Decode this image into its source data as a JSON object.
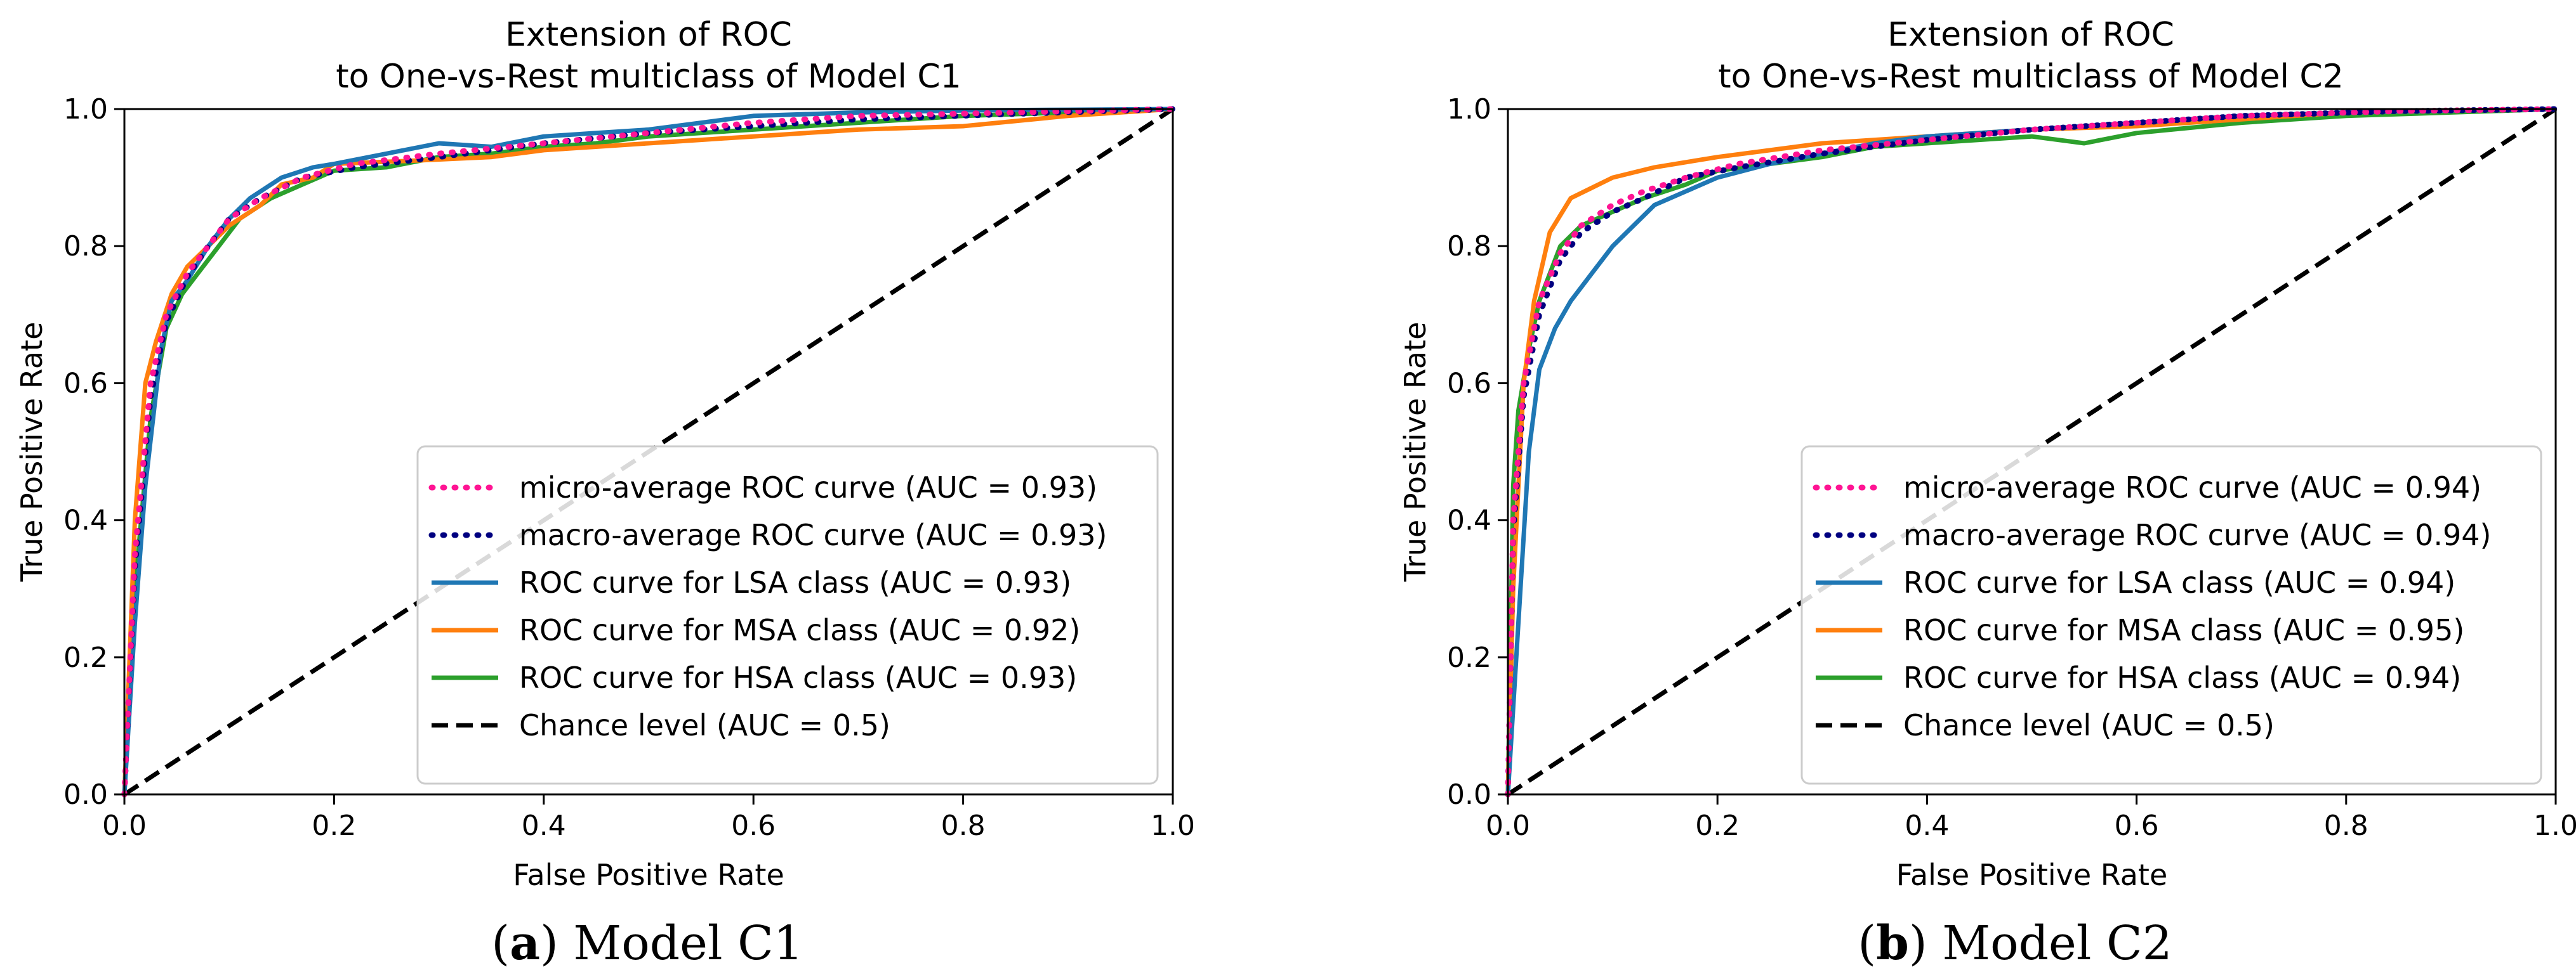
{
  "colors": {
    "micro": "#ff1493",
    "macro": "#000080",
    "lsa": "#1f77b4",
    "msa": "#ff7f0e",
    "hsa": "#2ca02c",
    "chance": "#000000"
  },
  "chart_data": [
    {
      "type": "line",
      "caption_label": "a",
      "caption_text": "Model C1",
      "title": "Extension of ROC\nto One-vs-Rest multiclass of Model C1",
      "xlabel": "False Positive Rate",
      "ylabel": "True Positive Rate",
      "xlim": [
        0.0,
        1.0
      ],
      "ylim": [
        0.0,
        1.0
      ],
      "x_ticks": [
        0.0,
        0.2,
        0.4,
        0.6,
        0.8,
        1.0
      ],
      "y_ticks": [
        0.0,
        0.2,
        0.4,
        0.6,
        0.8,
        1.0
      ],
      "tick_labels": [
        "0.0",
        "0.2",
        "0.4",
        "0.6",
        "0.8",
        "1.0"
      ],
      "grid": false,
      "legend_position": "lower-right",
      "series": [
        {
          "key": "micro",
          "name": "micro-average ROC curve (AUC = 0.93)",
          "style": "dotted",
          "points": [
            [
              0,
              0
            ],
            [
              0.01,
              0.35
            ],
            [
              0.025,
              0.6
            ],
            [
              0.04,
              0.7
            ],
            [
              0.06,
              0.76
            ],
            [
              0.08,
              0.8
            ],
            [
              0.1,
              0.84
            ],
            [
              0.13,
              0.87
            ],
            [
              0.17,
              0.9
            ],
            [
              0.22,
              0.92
            ],
            [
              0.3,
              0.935
            ],
            [
              0.4,
              0.95
            ],
            [
              0.5,
              0.965
            ],
            [
              0.6,
              0.98
            ],
            [
              0.7,
              0.99
            ],
            [
              0.85,
              0.995
            ],
            [
              1,
              1
            ]
          ]
        },
        {
          "key": "macro",
          "name": "macro-average ROC curve (AUC = 0.93)",
          "style": "dotted",
          "points": [
            [
              0,
              0
            ],
            [
              0.01,
              0.33
            ],
            [
              0.025,
              0.58
            ],
            [
              0.04,
              0.69
            ],
            [
              0.06,
              0.755
            ],
            [
              0.08,
              0.8
            ],
            [
              0.1,
              0.84
            ],
            [
              0.13,
              0.87
            ],
            [
              0.17,
              0.9
            ],
            [
              0.22,
              0.915
            ],
            [
              0.3,
              0.93
            ],
            [
              0.4,
              0.95
            ],
            [
              0.5,
              0.965
            ],
            [
              0.6,
              0.975
            ],
            [
              0.7,
              0.985
            ],
            [
              0.85,
              0.993
            ],
            [
              1,
              1
            ]
          ]
        },
        {
          "key": "lsa",
          "name": "ROC curve for LSA class (AUC = 0.93)",
          "style": "solid",
          "points": [
            [
              0,
              0
            ],
            [
              0.01,
              0.25
            ],
            [
              0.02,
              0.45
            ],
            [
              0.035,
              0.65
            ],
            [
              0.045,
              0.72
            ],
            [
              0.06,
              0.75
            ],
            [
              0.08,
              0.8
            ],
            [
              0.1,
              0.84
            ],
            [
              0.12,
              0.87
            ],
            [
              0.15,
              0.9
            ],
            [
              0.18,
              0.915
            ],
            [
              0.2,
              0.92
            ],
            [
              0.25,
              0.935
            ],
            [
              0.3,
              0.95
            ],
            [
              0.35,
              0.945
            ],
            [
              0.4,
              0.96
            ],
            [
              0.45,
              0.965
            ],
            [
              0.5,
              0.97
            ],
            [
              0.55,
              0.98
            ],
            [
              0.6,
              0.99
            ],
            [
              0.7,
              0.995
            ],
            [
              0.8,
              0.998
            ],
            [
              0.9,
              0.999
            ],
            [
              1,
              1
            ]
          ]
        },
        {
          "key": "msa",
          "name": "ROC curve for MSA class (AUC = 0.92)",
          "style": "solid",
          "points": [
            [
              0,
              0
            ],
            [
              0.01,
              0.4
            ],
            [
              0.02,
              0.6
            ],
            [
              0.03,
              0.66
            ],
            [
              0.045,
              0.73
            ],
            [
              0.06,
              0.77
            ],
            [
              0.08,
              0.8
            ],
            [
              0.1,
              0.83
            ],
            [
              0.13,
              0.86
            ],
            [
              0.15,
              0.89
            ],
            [
              0.18,
              0.9
            ],
            [
              0.2,
              0.92
            ],
            [
              0.28,
              0.925
            ],
            [
              0.35,
              0.93
            ],
            [
              0.4,
              0.94
            ],
            [
              0.45,
              0.945
            ],
            [
              0.5,
              0.95
            ],
            [
              0.55,
              0.955
            ],
            [
              0.6,
              0.96
            ],
            [
              0.7,
              0.97
            ],
            [
              0.8,
              0.975
            ],
            [
              0.9,
              0.99
            ],
            [
              1,
              1
            ]
          ]
        },
        {
          "key": "hsa",
          "name": "ROC curve for HSA class (AUC = 0.93)",
          "style": "solid",
          "points": [
            [
              0,
              0
            ],
            [
              0.01,
              0.3
            ],
            [
              0.025,
              0.55
            ],
            [
              0.04,
              0.68
            ],
            [
              0.055,
              0.73
            ],
            [
              0.07,
              0.76
            ],
            [
              0.09,
              0.8
            ],
            [
              0.11,
              0.84
            ],
            [
              0.14,
              0.87
            ],
            [
              0.17,
              0.89
            ],
            [
              0.2,
              0.91
            ],
            [
              0.25,
              0.915
            ],
            [
              0.3,
              0.93
            ],
            [
              0.35,
              0.935
            ],
            [
              0.4,
              0.945
            ],
            [
              0.45,
              0.95
            ],
            [
              0.5,
              0.96
            ],
            [
              0.55,
              0.965
            ],
            [
              0.6,
              0.97
            ],
            [
              0.65,
              0.975
            ],
            [
              0.7,
              0.98
            ],
            [
              0.8,
              0.99
            ],
            [
              0.9,
              0.995
            ],
            [
              1,
              1
            ]
          ]
        },
        {
          "key": "chance",
          "name": "Chance level (AUC = 0.5)",
          "style": "dashed",
          "points": [
            [
              0,
              0
            ],
            [
              1,
              1
            ]
          ]
        }
      ]
    },
    {
      "type": "line",
      "caption_label": "b",
      "caption_text": "Model C2",
      "title": "Extension of ROC\nto One-vs-Rest multiclass of Model C2",
      "xlabel": "False Positive Rate",
      "ylabel": "True Positive Rate",
      "xlim": [
        0.0,
        1.0
      ],
      "ylim": [
        0.0,
        1.0
      ],
      "x_ticks": [
        0.0,
        0.2,
        0.4,
        0.6,
        0.8,
        1.0
      ],
      "y_ticks": [
        0.0,
        0.2,
        0.4,
        0.6,
        0.8,
        1.0
      ],
      "tick_labels": [
        "0.0",
        "0.2",
        "0.4",
        "0.6",
        "0.8",
        "1.0"
      ],
      "grid": false,
      "legend_position": "lower-right",
      "series": [
        {
          "key": "micro",
          "name": "micro-average ROC curve (AUC = 0.94)",
          "style": "dotted",
          "points": [
            [
              0,
              0
            ],
            [
              0.005,
              0.4
            ],
            [
              0.015,
              0.6
            ],
            [
              0.03,
              0.72
            ],
            [
              0.05,
              0.79
            ],
            [
              0.07,
              0.83
            ],
            [
              0.1,
              0.86
            ],
            [
              0.13,
              0.88
            ],
            [
              0.17,
              0.9
            ],
            [
              0.22,
              0.92
            ],
            [
              0.3,
              0.94
            ],
            [
              0.4,
              0.955
            ],
            [
              0.5,
              0.97
            ],
            [
              0.6,
              0.98
            ],
            [
              0.7,
              0.99
            ],
            [
              0.85,
              0.997
            ],
            [
              1,
              1
            ]
          ]
        },
        {
          "key": "macro",
          "name": "macro-average ROC curve (AUC = 0.94)",
          "style": "dotted",
          "points": [
            [
              0,
              0
            ],
            [
              0.005,
              0.38
            ],
            [
              0.015,
              0.58
            ],
            [
              0.03,
              0.7
            ],
            [
              0.05,
              0.78
            ],
            [
              0.07,
              0.82
            ],
            [
              0.1,
              0.85
            ],
            [
              0.13,
              0.87
            ],
            [
              0.17,
              0.9
            ],
            [
              0.22,
              0.915
            ],
            [
              0.3,
              0.935
            ],
            [
              0.4,
              0.955
            ],
            [
              0.5,
              0.97
            ],
            [
              0.6,
              0.98
            ],
            [
              0.7,
              0.99
            ],
            [
              0.85,
              0.997
            ],
            [
              1,
              1
            ]
          ]
        },
        {
          "key": "lsa",
          "name": "ROC curve for LSA class (AUC = 0.94)",
          "style": "solid",
          "points": [
            [
              0,
              0
            ],
            [
              0.01,
              0.25
            ],
            [
              0.02,
              0.5
            ],
            [
              0.03,
              0.62
            ],
            [
              0.045,
              0.68
            ],
            [
              0.06,
              0.72
            ],
            [
              0.08,
              0.76
            ],
            [
              0.1,
              0.8
            ],
            [
              0.12,
              0.83
            ],
            [
              0.14,
              0.86
            ],
            [
              0.17,
              0.88
            ],
            [
              0.2,
              0.9
            ],
            [
              0.25,
              0.92
            ],
            [
              0.3,
              0.935
            ],
            [
              0.35,
              0.95
            ],
            [
              0.4,
              0.96
            ],
            [
              0.5,
              0.97
            ],
            [
              0.6,
              0.98
            ],
            [
              0.7,
              0.99
            ],
            [
              0.8,
              0.995
            ],
            [
              0.9,
              0.998
            ],
            [
              1,
              1
            ]
          ]
        },
        {
          "key": "msa",
          "name": "ROC curve for MSA class (AUC = 0.95)",
          "style": "solid",
          "points": [
            [
              0,
              0
            ],
            [
              0.005,
              0.3
            ],
            [
              0.015,
              0.6
            ],
            [
              0.025,
              0.72
            ],
            [
              0.04,
              0.82
            ],
            [
              0.06,
              0.87
            ],
            [
              0.08,
              0.885
            ],
            [
              0.1,
              0.9
            ],
            [
              0.14,
              0.915
            ],
            [
              0.2,
              0.93
            ],
            [
              0.25,
              0.94
            ],
            [
              0.3,
              0.95
            ],
            [
              0.4,
              0.96
            ],
            [
              0.5,
              0.97
            ],
            [
              0.6,
              0.975
            ],
            [
              0.7,
              0.985
            ],
            [
              0.8,
              0.995
            ],
            [
              0.9,
              0.998
            ],
            [
              1,
              1
            ]
          ]
        },
        {
          "key": "hsa",
          "name": "ROC curve for HSA class (AUC = 0.94)",
          "style": "solid",
          "points": [
            [
              0,
              0
            ],
            [
              0.005,
              0.45
            ],
            [
              0.01,
              0.56
            ],
            [
              0.02,
              0.65
            ],
            [
              0.03,
              0.72
            ],
            [
              0.05,
              0.8
            ],
            [
              0.07,
              0.83
            ],
            [
              0.1,
              0.85
            ],
            [
              0.13,
              0.87
            ],
            [
              0.17,
              0.89
            ],
            [
              0.2,
              0.91
            ],
            [
              0.25,
              0.92
            ],
            [
              0.3,
              0.93
            ],
            [
              0.35,
              0.945
            ],
            [
              0.4,
              0.95
            ],
            [
              0.45,
              0.955
            ],
            [
              0.5,
              0.96
            ],
            [
              0.55,
              0.95
            ],
            [
              0.6,
              0.965
            ],
            [
              0.7,
              0.98
            ],
            [
              0.8,
              0.99
            ],
            [
              0.9,
              0.995
            ],
            [
              1,
              1
            ]
          ]
        },
        {
          "key": "chance",
          "name": "Chance level (AUC = 0.5)",
          "style": "dashed",
          "points": [
            [
              0,
              0
            ],
            [
              1,
              1
            ]
          ]
        }
      ]
    }
  ]
}
